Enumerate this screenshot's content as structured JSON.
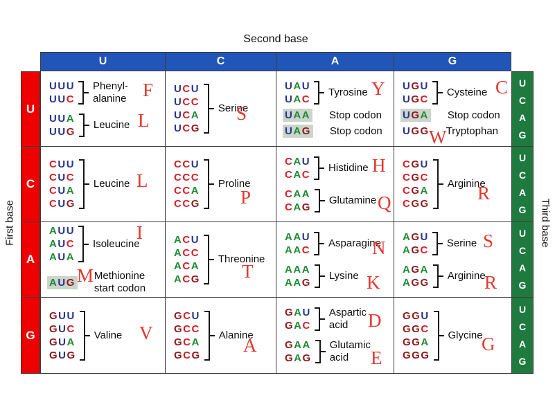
{
  "labels": {
    "second_base": "Second base",
    "first_base": "First base",
    "third_base": "Third base"
  },
  "second_bases": [
    "U",
    "C",
    "A",
    "G"
  ],
  "first_bases": [
    "U",
    "C",
    "A",
    "G"
  ],
  "third_bases": [
    "U",
    "C",
    "A",
    "G"
  ],
  "colors": {
    "header_blue": "#2155b8",
    "first_red": "#ee0000",
    "third_green": "#1e7a3e",
    "highlight": "#cbd5cb",
    "annotation": "#e5372e",
    "nt_U": "#27348b",
    "nt_C": "#d32027",
    "nt_A": "#1f8a35",
    "nt_G": "#8f1a1a",
    "grid_line": "#3c3c3c"
  },
  "cells": [
    {
      "row": "U",
      "col": "U",
      "groups": [
        {
          "codons": [
            "UUU",
            "UUC"
          ],
          "bracket": true,
          "name": [
            "Phenyl-",
            "alanine"
          ],
          "letter": "F",
          "lp": [
            147,
            14
          ]
        },
        {
          "codons": [
            "UUA",
            "UUG"
          ],
          "bracket": true,
          "name": [
            "Leucine"
          ],
          "letter": "L",
          "lp": [
            140,
            58
          ]
        }
      ]
    },
    {
      "row": "U",
      "col": "C",
      "groups": [
        {
          "codons": [
            "UCU",
            "UCC",
            "UCA",
            "UCG"
          ],
          "bracket": true,
          "name": [
            "Serine"
          ],
          "letter": "S",
          "lp": [
            102,
            48
          ]
        }
      ]
    },
    {
      "row": "U",
      "col": "A",
      "groups": [
        {
          "codons": [
            "UAU",
            "UAC"
          ],
          "bracket": true,
          "name": [
            "Tyrosine"
          ],
          "letter": "Y",
          "lp": [
            137,
            12
          ]
        },
        {
          "codons": [
            "UAA"
          ],
          "hl": true,
          "name": [
            "Stop codon"
          ]
        },
        {
          "codons": [
            "UAG"
          ],
          "hl": true,
          "name": [
            "Stop codon"
          ]
        }
      ]
    },
    {
      "row": "U",
      "col": "G",
      "groups": [
        {
          "codons": [
            "UGU",
            "UGC"
          ],
          "bracket": true,
          "name": [
            "Cysteine"
          ],
          "letter": "C",
          "lp": [
            146,
            10
          ]
        },
        {
          "codons": [
            "UGA"
          ],
          "hl": true,
          "name": [
            "Stop codon"
          ],
          "letter": "W",
          "lp": [
            50,
            82
          ]
        },
        {
          "codons": [
            "UGG"
          ],
          "name": [
            "Tryptophan"
          ]
        }
      ]
    },
    {
      "row": "C",
      "col": "U",
      "groups": [
        {
          "codons": [
            "CUU",
            "CUC",
            "CUA",
            "CUG"
          ],
          "bracket": true,
          "name": [
            "Leucine"
          ],
          "letter": "L",
          "lp": [
            138,
            36
          ]
        }
      ]
    },
    {
      "row": "C",
      "col": "C",
      "groups": [
        {
          "codons": [
            "CCU",
            "CCC",
            "CCA",
            "CCG"
          ],
          "bracket": true,
          "name": [
            "Proline"
          ],
          "letter": "P",
          "lp": [
            108,
            60
          ]
        }
      ]
    },
    {
      "row": "C",
      "col": "A",
      "groups": [
        {
          "codons": [
            "CAU",
            "CAC"
          ],
          "bracket": true,
          "name": [
            "Histidine"
          ],
          "letter": "H",
          "lp": [
            138,
            14
          ]
        },
        {
          "codons": [
            "CAA",
            "CAG"
          ],
          "bracket": true,
          "name": [
            "Glutamine"
          ],
          "letter": "Q",
          "lp": [
            146,
            68
          ]
        }
      ]
    },
    {
      "row": "C",
      "col": "G",
      "groups": [
        {
          "codons": [
            "CGU",
            "CGC",
            "CGA",
            "CGG"
          ],
          "bracket": true,
          "name": [
            "Arginine"
          ],
          "letter": "R",
          "lp": [
            120,
            54
          ]
        }
      ]
    },
    {
      "row": "A",
      "col": "U",
      "groups": [
        {
          "codons": [
            "AUU",
            "AUC",
            "AUA"
          ],
          "bracket": true,
          "name": [
            "Isoleucine"
          ],
          "letter": "I",
          "lp": [
            138,
            2
          ]
        },
        {
          "codons": [
            "AUG"
          ],
          "hl": true,
          "name": [
            "Methionine",
            "start codon"
          ],
          "letter": "M",
          "lp": [
            52,
            64
          ]
        }
      ]
    },
    {
      "row": "A",
      "col": "C",
      "groups": [
        {
          "codons": [
            "ACU",
            "ACC",
            "ACA",
            "ACG"
          ],
          "bracket": true,
          "name": [
            "Threonine"
          ],
          "letter": "T",
          "lp": [
            110,
            58
          ]
        }
      ]
    },
    {
      "row": "A",
      "col": "A",
      "groups": [
        {
          "codons": [
            "AAU",
            "AAC"
          ],
          "bracket": true,
          "name": [
            "Asparagine"
          ],
          "letter": "N",
          "lp": [
            138,
            24
          ]
        },
        {
          "codons": [
            "AAA",
            "AAG"
          ],
          "bracket": true,
          "name": [
            "Lysine"
          ],
          "letter": "K",
          "lp": [
            130,
            74
          ]
        }
      ]
    },
    {
      "row": "A",
      "col": "G",
      "groups": [
        {
          "codons": [
            "AGU",
            "AGC"
          ],
          "bracket": true,
          "name": [
            "Serine"
          ],
          "letter": "S",
          "lp": [
            128,
            14
          ]
        },
        {
          "codons": [
            "AGA",
            "AGG"
          ],
          "bracket": true,
          "name": [
            "Arginine"
          ],
          "letter": "R",
          "lp": [
            130,
            74
          ]
        }
      ]
    },
    {
      "row": "G",
      "col": "U",
      "groups": [
        {
          "codons": [
            "GUU",
            "GUC",
            "GUA",
            "GUG"
          ],
          "bracket": true,
          "name": [
            "Valine"
          ],
          "letter": "V",
          "lp": [
            142,
            38
          ]
        }
      ]
    },
    {
      "row": "G",
      "col": "C",
      "groups": [
        {
          "codons": [
            "GCU",
            "GCC",
            "GCA",
            "GCG"
          ],
          "bracket": true,
          "name": [
            "Alanine"
          ],
          "letter": "A",
          "lp": [
            112,
            56
          ]
        }
      ]
    },
    {
      "row": "G",
      "col": "A",
      "groups": [
        {
          "codons": [
            "GAU",
            "GAC"
          ],
          "bracket": true,
          "name": [
            "Aspartic",
            "acid"
          ],
          "letter": "D",
          "lp": [
            132,
            20
          ]
        },
        {
          "codons": [
            "GAA",
            "GAG"
          ],
          "bracket": true,
          "name": [
            "Glutamic",
            "acid"
          ],
          "letter": "E",
          "lp": [
            136,
            74
          ]
        }
      ]
    },
    {
      "row": "G",
      "col": "G",
      "groups": [
        {
          "codons": [
            "GGU",
            "GGC",
            "GGA",
            "GGG"
          ],
          "bracket": true,
          "name": [
            "Glycine"
          ],
          "letter": "G",
          "lp": [
            126,
            54
          ]
        }
      ]
    }
  ]
}
